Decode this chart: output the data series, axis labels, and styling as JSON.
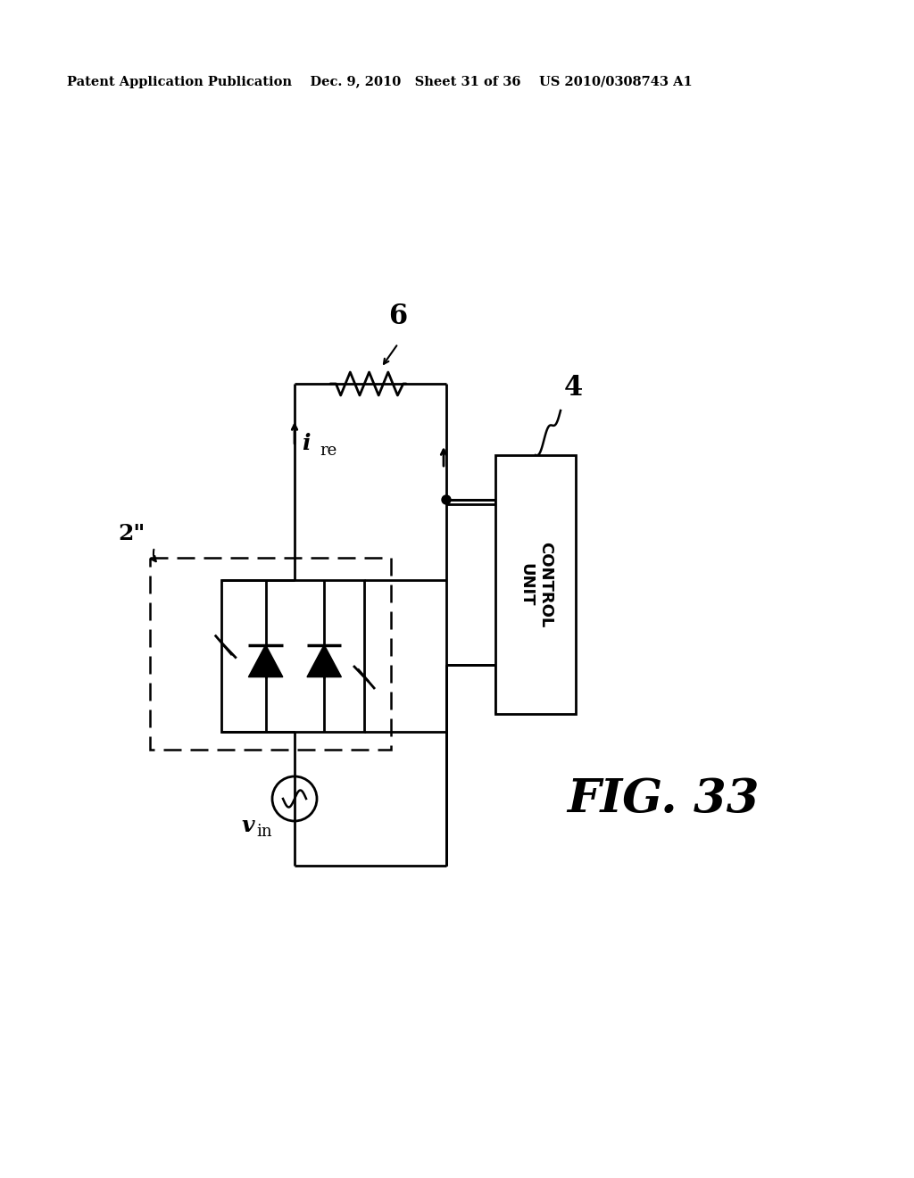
{
  "bg_color": "#ffffff",
  "line_color": "#000000",
  "header_text": "Patent Application Publication    Dec. 9, 2010   Sheet 31 of 36    US 2010/0308743 A1",
  "fig_label": "FIG. 33",
  "label_2q": "2\"",
  "label_4": "4",
  "label_6": "6",
  "label_ire_main": "i",
  "label_ire_sub": "re",
  "label_vin_main": "v",
  "label_vin_sub": "in",
  "cu_text": "CONTROL UNIT"
}
